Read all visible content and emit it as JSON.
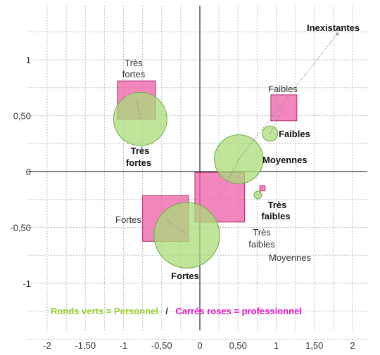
{
  "chart_data": {
    "type": "scatter",
    "title": "",
    "xlabel": "",
    "ylabel": "",
    "xlim": [
      -2.1,
      2.15
    ],
    "ylim": [
      -1.3,
      1.45
    ],
    "grid": true,
    "x_ticks": [
      {
        "value": -2,
        "label": "-2"
      },
      {
        "value": -1.5,
        "label": "-1,50"
      },
      {
        "value": -1,
        "label": "-1"
      },
      {
        "value": -0.5,
        "label": "-0,50"
      },
      {
        "value": 0,
        "label": "0"
      },
      {
        "value": 0.5,
        "label": "0,50"
      },
      {
        "value": 1,
        "label": "1"
      },
      {
        "value": 1.5,
        "label": "1,50"
      },
      {
        "value": 2,
        "label": "2"
      }
    ],
    "y_ticks": [
      {
        "value": 1,
        "label": "1"
      },
      {
        "value": 0.5,
        "label": "0,50"
      },
      {
        "value": 0,
        "label": "0"
      },
      {
        "value": -0.5,
        "label": "-0,50"
      },
      {
        "value": -1,
        "label": "-1"
      }
    ],
    "legend": {
      "green": "Ronds verts = Personnel",
      "separator": "/",
      "pink": "Carrés roses = professionnel"
    },
    "colors": {
      "green_fill": "#a8dc78",
      "green_stroke": "#6fa84a",
      "pink_fill": "#ee5fa8",
      "pink_stroke": "#b3306e",
      "grid": "#bdbdbd",
      "axis": "#000000"
    },
    "series": [
      {
        "name": "Personnel",
        "shape": "circle",
        "points": [
          {
            "label": "Très fortes",
            "x": -0.78,
            "y": 0.47,
            "size": 0.35
          },
          {
            "label": "Fortes",
            "x": -0.17,
            "y": -0.57,
            "size": 0.43
          },
          {
            "label": "Moyennes",
            "x": 0.51,
            "y": 0.11,
            "size": 0.32
          },
          {
            "label": "Faibles",
            "x": 0.92,
            "y": 0.34,
            "size": 0.1
          },
          {
            "label": "Très faibles",
            "x": 0.76,
            "y": -0.21,
            "size": 0.05
          },
          {
            "label": "Inexistantes",
            "x": 1.8,
            "y": 1.23,
            "size": 0.01
          }
        ]
      },
      {
        "name": "professionnel",
        "shape": "square",
        "points": [
          {
            "label": "Très fortes",
            "x": -0.83,
            "y": 0.64,
            "size": 0.5
          },
          {
            "label": "Fortes",
            "x": -0.45,
            "y": -0.42,
            "size": 0.6
          },
          {
            "label": "Moyennes",
            "x": 0.26,
            "y": -0.23,
            "size": 0.65
          },
          {
            "label": "Faibles",
            "x": 1.1,
            "y": 0.57,
            "size": 0.34
          },
          {
            "label": "Très faibles",
            "x": 0.82,
            "y": -0.15,
            "size": 0.07
          }
        ]
      }
    ],
    "point_labels": [
      {
        "text": "Inexistantes",
        "series": "Personnel",
        "bold": true
      },
      {
        "text": "Très fortes",
        "series": "professionnel",
        "bold": false
      },
      {
        "text": "Faibles",
        "series": "professionnel",
        "bold": false
      },
      {
        "text": "Faibles",
        "series": "Personnel",
        "bold": true
      },
      {
        "text": "Très fortes",
        "series": "Personnel",
        "bold": true
      },
      {
        "text": "Moyennes",
        "series": "Personnel",
        "bold": true
      },
      {
        "text": "Très faibles",
        "series": "Personnel",
        "bold": true
      },
      {
        "text": "Fortes",
        "series": "professionnel",
        "bold": false
      },
      {
        "text": "Très faibles",
        "series": "professionnel",
        "bold": false
      },
      {
        "text": "Moyennes",
        "series": "professionnel",
        "bold": false
      },
      {
        "text": "Fortes",
        "series": "Personnel",
        "bold": true
      }
    ]
  }
}
